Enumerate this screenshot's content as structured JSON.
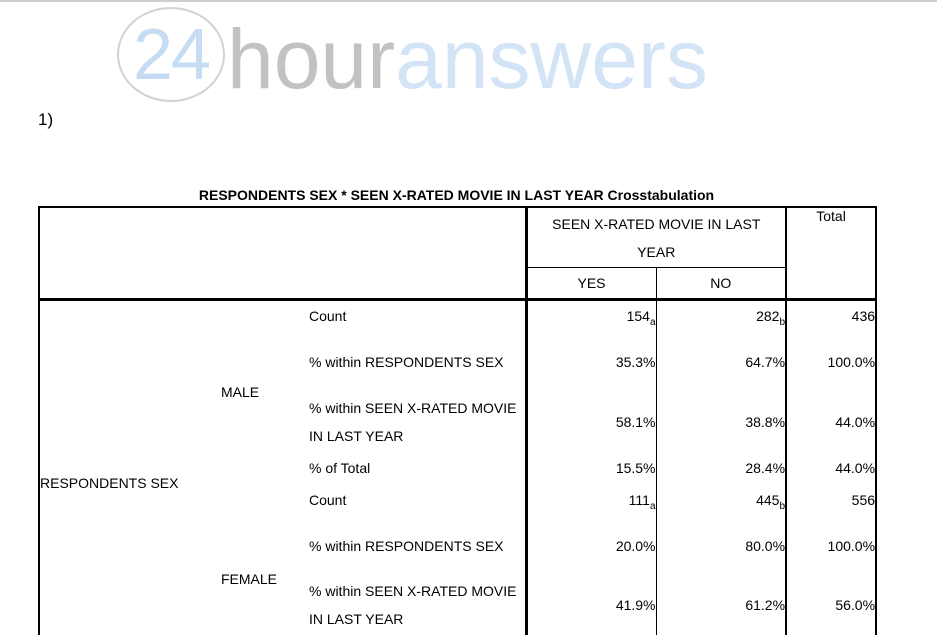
{
  "question_label": "1)",
  "logo": {
    "badge_number": "24",
    "name_part_gray": "hour",
    "name_part_blue": "answers",
    "colors": {
      "number_blue": "#c5dcf2",
      "word_gray": "#c2c2c2",
      "word_blue": "#d3e4f6",
      "circle_border": "#d2d2d2"
    }
  },
  "crosstab": {
    "title": "RESPONDENTS SEX * SEEN X-RATED MOVIE IN LAST YEAR Crosstabulation",
    "span_header_lines": [
      "SEEN X-RATED MOVIE IN LAST",
      "YEAR"
    ],
    "column_headers": [
      "YES",
      "NO"
    ],
    "total_header": "Total",
    "row_dimension_label": "RESPONDENTS SEX",
    "groups": [
      {
        "category": "MALE",
        "rows": [
          {
            "label": "Count",
            "yes": "154",
            "yes_sub": "a",
            "no": "282",
            "no_sub": "b",
            "total": "436"
          },
          {
            "label": "% within RESPONDENTS SEX",
            "yes": "35.3%",
            "no": "64.7%",
            "total": "100.0%"
          },
          {
            "label": "% within SEEN X-RATED MOVIE IN LAST YEAR",
            "yes": "58.1%",
            "no": "38.8%",
            "total": "44.0%"
          },
          {
            "label": "% of Total",
            "yes": "15.5%",
            "no": "28.4%",
            "total": "44.0%"
          }
        ]
      },
      {
        "category": "FEMALE",
        "rows": [
          {
            "label": "Count",
            "yes": "111",
            "yes_sub": "a",
            "no": "445",
            "no_sub": "b",
            "total": "556"
          },
          {
            "label": "% within RESPONDENTS SEX",
            "yes": "20.0%",
            "no": "80.0%",
            "total": "100.0%"
          },
          {
            "label": "% within SEEN X-RATED MOVIE IN LAST YEAR",
            "yes": "41.9%",
            "no": "61.2%",
            "total": "56.0%"
          }
        ]
      }
    ]
  }
}
